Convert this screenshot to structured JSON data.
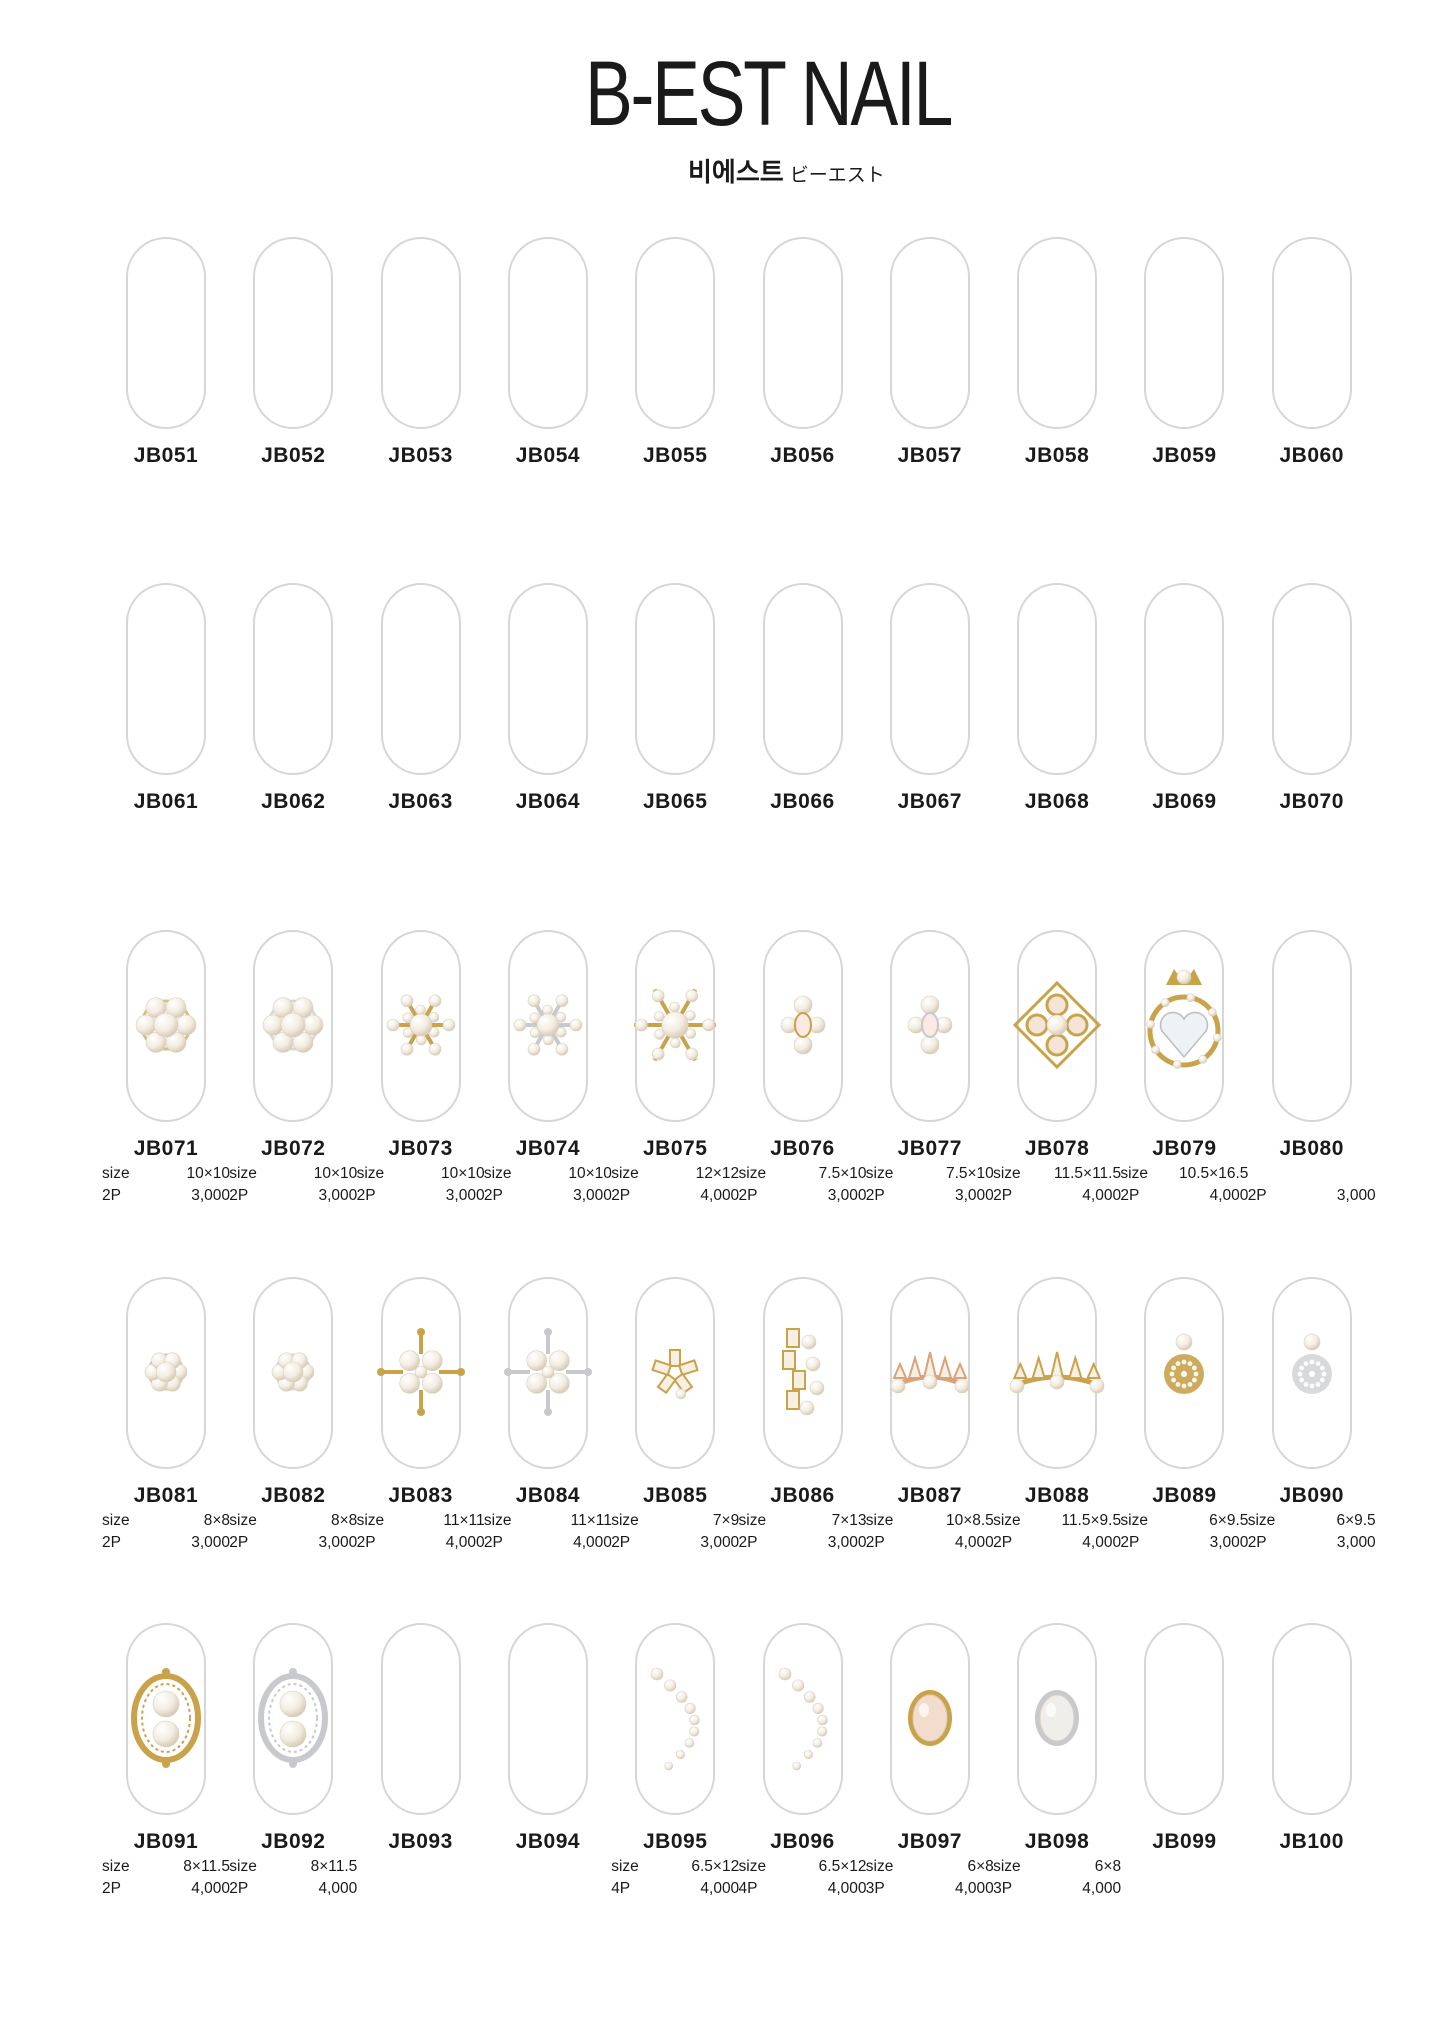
{
  "brand": {
    "logo_text": "B-EST NAIL",
    "korean": "비에스트",
    "japanese": "ビーエスト"
  },
  "labels": {
    "size": "size"
  },
  "colors": {
    "nail_outline": "#d6d6d6",
    "gold": "#c9a24a",
    "silver": "#c7c9cc",
    "pearl": "#f3ede2",
    "rose": "#d9a27a"
  },
  "rows": [
    {
      "items": [
        {
          "code": "JB051",
          "charm": "none"
        },
        {
          "code": "JB052",
          "charm": "none"
        },
        {
          "code": "JB053",
          "charm": "none"
        },
        {
          "code": "JB054",
          "charm": "none"
        },
        {
          "code": "JB055",
          "charm": "none"
        },
        {
          "code": "JB056",
          "charm": "none"
        },
        {
          "code": "JB057",
          "charm": "none"
        },
        {
          "code": "JB058",
          "charm": "none"
        },
        {
          "code": "JB059",
          "charm": "none"
        },
        {
          "code": "JB060",
          "charm": "none"
        }
      ]
    },
    {
      "items": [
        {
          "code": "JB061",
          "charm": "none"
        },
        {
          "code": "JB062",
          "charm": "none"
        },
        {
          "code": "JB063",
          "charm": "none"
        },
        {
          "code": "JB064",
          "charm": "none"
        },
        {
          "code": "JB065",
          "charm": "none"
        },
        {
          "code": "JB066",
          "charm": "none"
        },
        {
          "code": "JB067",
          "charm": "none"
        },
        {
          "code": "JB068",
          "charm": "none"
        },
        {
          "code": "JB069",
          "charm": "none"
        },
        {
          "code": "JB070",
          "charm": "none"
        }
      ]
    },
    {
      "items": [
        {
          "code": "JB071",
          "size": "10×10",
          "qty": "2P",
          "price": "3,000",
          "charm": "gold-pearl-flower"
        },
        {
          "code": "JB072",
          "size": "10×10",
          "qty": "2P",
          "price": "3,000",
          "charm": "silver-pearl-flower"
        },
        {
          "code": "JB073",
          "size": "10×10",
          "qty": "2P",
          "price": "3,000",
          "charm": "gold-snowflake"
        },
        {
          "code": "JB074",
          "size": "10×10",
          "qty": "2P",
          "price": "3,000",
          "charm": "silver-snowflake"
        },
        {
          "code": "JB075",
          "size": "12×12",
          "qty": "2P",
          "price": "4,000",
          "charm": "gold-snowflake-large"
        },
        {
          "code": "JB076",
          "size": "7.5×10",
          "qty": "2P",
          "price": "3,000",
          "charm": "gold-pearl-cluster"
        },
        {
          "code": "JB077",
          "size": "7.5×10",
          "qty": "2P",
          "price": "3,000",
          "charm": "silver-pearl-cluster"
        },
        {
          "code": "JB078",
          "size": "11.5×11.5",
          "qty": "2P",
          "price": "4,000",
          "charm": "gold-cross"
        },
        {
          "code": "JB079",
          "size": "10.5×16.5",
          "qty": "2P",
          "price": "4,000",
          "charm": "gold-crown-heart"
        },
        {
          "code": "JB080",
          "qty": "2P",
          "price": "3,000",
          "charm": "none"
        }
      ]
    },
    {
      "items": [
        {
          "code": "JB081",
          "size": "8×8",
          "qty": "2P",
          "price": "3,000",
          "charm": "rose-pearl-flower"
        },
        {
          "code": "JB082",
          "size": "8×8",
          "qty": "2P",
          "price": "3,000",
          "charm": "silver-pearl-flower-small"
        },
        {
          "code": "JB083",
          "size": "11×11",
          "qty": "2P",
          "price": "4,000",
          "charm": "gold-pearl-star"
        },
        {
          "code": "JB084",
          "size": "11×11",
          "qty": "2P",
          "price": "4,000",
          "charm": "silver-pearl-star"
        },
        {
          "code": "JB085",
          "size": "7×9",
          "qty": "2P",
          "price": "3,000",
          "charm": "gold-crystal-burst"
        },
        {
          "code": "JB086",
          "size": "7×13",
          "qty": "2P",
          "price": "3,000",
          "charm": "gold-crystal-spray"
        },
        {
          "code": "JB087",
          "size": "10×8.5",
          "qty": "2P",
          "price": "4,000",
          "charm": "rose-tiara"
        },
        {
          "code": "JB088",
          "size": "11.5×9.5",
          "qty": "2P",
          "price": "4,000",
          "charm": "gold-tiara"
        },
        {
          "code": "JB089",
          "size": "6×9.5",
          "qty": "2P",
          "price": "3,000",
          "charm": "gold-pearl-drop"
        },
        {
          "code": "JB090",
          "size": "6×9.5",
          "qty": "2P",
          "price": "3,000",
          "charm": "silver-pearl-drop"
        }
      ]
    },
    {
      "items": [
        {
          "code": "JB091",
          "size": "8×11.5",
          "qty": "2P",
          "price": "4,000",
          "charm": "gold-oval-frame"
        },
        {
          "code": "JB092",
          "size": "8×11.5",
          "qty": "2P",
          "price": "4,000",
          "charm": "silver-oval-frame"
        },
        {
          "code": "JB093",
          "charm": "none"
        },
        {
          "code": "JB094",
          "charm": "none"
        },
        {
          "code": "JB095",
          "size": "6.5×12",
          "qty": "4P",
          "price": "4,000",
          "charm": "gold-pearl-arc"
        },
        {
          "code": "JB096",
          "size": "6.5×12",
          "qty": "4P",
          "price": "4,000",
          "charm": "gold-pearl-arc-mirror"
        },
        {
          "code": "JB097",
          "size": "6×8",
          "qty": "3P",
          "price": "4,000",
          "charm": "gold-oval-pearl"
        },
        {
          "code": "JB098",
          "size": "6×8",
          "qty": "3P",
          "price": "4,000",
          "charm": "silver-oval-pearl"
        },
        {
          "code": "JB099",
          "charm": "none"
        },
        {
          "code": "JB100",
          "charm": "none"
        }
      ]
    }
  ]
}
